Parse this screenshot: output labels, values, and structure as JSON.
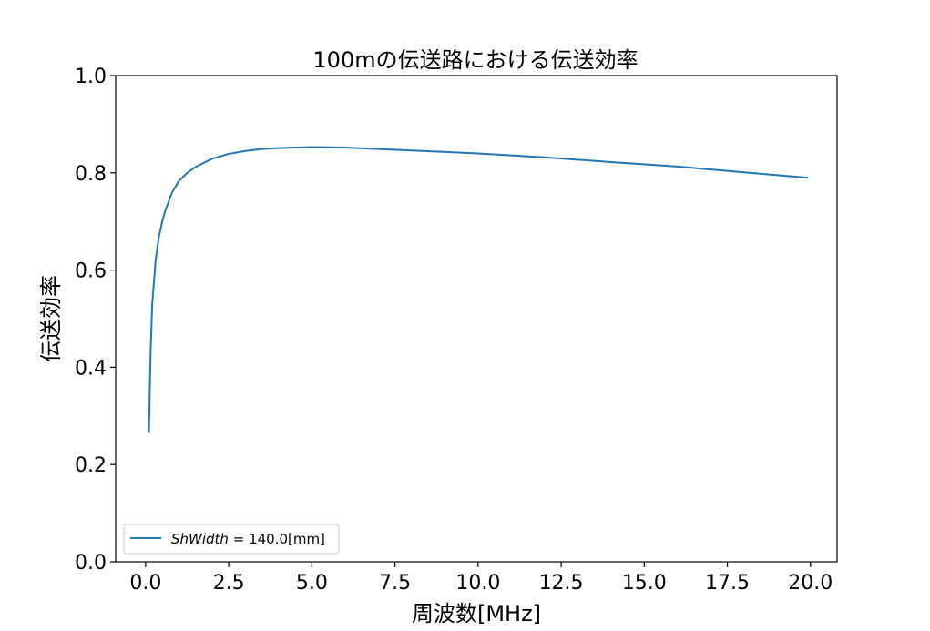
{
  "chart_data": {
    "type": "line",
    "title": "100mの伝送路における伝送効率",
    "xlabel": "周波数[MHz]",
    "ylabel": "伝送効率",
    "xlim": [
      -0.9,
      20.8
    ],
    "ylim": [
      0.0,
      1.0
    ],
    "xticks": [
      "0.0",
      "2.5",
      "5.0",
      "7.5",
      "10.0",
      "12.5",
      "15.0",
      "17.5",
      "20.0"
    ],
    "yticks": [
      "0.0",
      "0.2",
      "0.4",
      "0.6",
      "0.8",
      "1.0"
    ],
    "grid": false,
    "legend_position": "lower-left",
    "series": [
      {
        "name_italic": "ShWidth",
        "name_suffix": " = 140.0[mm]",
        "color": "#1f77b4",
        "x": [
          0.1,
          0.15,
          0.2,
          0.3,
          0.4,
          0.5,
          0.6,
          0.8,
          1.0,
          1.25,
          1.5,
          2.0,
          2.5,
          3.0,
          3.5,
          4.0,
          5.0,
          6.0,
          7.0,
          8.0,
          10.0,
          12.0,
          14.0,
          16.0,
          18.0,
          19.9
        ],
        "y": [
          0.268,
          0.43,
          0.53,
          0.62,
          0.668,
          0.7,
          0.724,
          0.76,
          0.783,
          0.8,
          0.812,
          0.829,
          0.839,
          0.845,
          0.849,
          0.851,
          0.853,
          0.852,
          0.849,
          0.846,
          0.84,
          0.832,
          0.822,
          0.813,
          0.801,
          0.79
        ]
      }
    ]
  }
}
